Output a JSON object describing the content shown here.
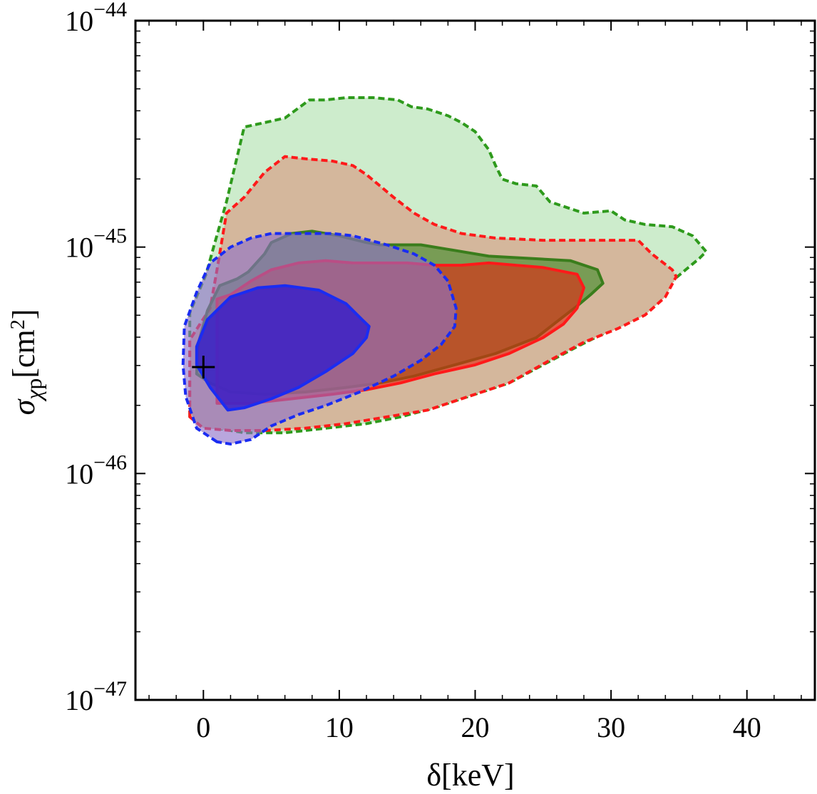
{
  "chart_data": {
    "type": "contour",
    "xlabel": "δ[keV]",
    "ylabel": "σχp[cm2]",
    "xlim": [
      -5,
      45
    ],
    "ylim_exp": [
      -47,
      -44
    ],
    "y_scale": "log",
    "x_ticks": [
      0,
      10,
      20,
      30,
      40
    ],
    "x_tick_labels": [
      "0",
      "10",
      "20",
      "30",
      "40"
    ],
    "y_ticks": [
      {
        "base": "10",
        "exp": "−44",
        "value": -44
      },
      {
        "base": "10",
        "exp": "−45",
        "value": -45
      },
      {
        "base": "10",
        "exp": "−46",
        "value": -46
      },
      {
        "base": "10",
        "exp": "−47",
        "value": -47
      }
    ],
    "grid": false,
    "best_fit_marker": {
      "x": 0.0,
      "log10_y": -45.53
    },
    "regions": [
      {
        "id": "green-outer",
        "line_color": "#2e9a1c",
        "fill_color": "#cdeccc",
        "fill_opacity": 1.0,
        "dashed": true,
        "points": [
          [
            -1.0,
            -45.75
          ],
          [
            -1.0,
            -45.29
          ],
          [
            0.2,
            -45.12
          ],
          [
            0.8,
            -44.99
          ],
          [
            1.7,
            -44.8
          ],
          [
            3.0,
            -44.47
          ],
          [
            4.5,
            -44.45
          ],
          [
            6.0,
            -44.43
          ],
          [
            7.8,
            -44.35
          ],
          [
            9.0,
            -44.35
          ],
          [
            10.5,
            -44.34
          ],
          [
            12.5,
            -44.34
          ],
          [
            14.3,
            -44.35
          ],
          [
            15.3,
            -44.38
          ],
          [
            16.5,
            -44.39
          ],
          [
            18.0,
            -44.42
          ],
          [
            19.0,
            -44.45
          ],
          [
            20.0,
            -44.49
          ],
          [
            21.0,
            -44.57
          ],
          [
            21.5,
            -44.64
          ],
          [
            22.0,
            -44.7
          ],
          [
            23.0,
            -44.72
          ],
          [
            24.5,
            -44.73
          ],
          [
            25.5,
            -44.8
          ],
          [
            27.0,
            -44.83
          ],
          [
            28.0,
            -44.85
          ],
          [
            30.0,
            -44.84
          ],
          [
            31.0,
            -44.88
          ],
          [
            32.5,
            -44.9
          ],
          [
            34.5,
            -44.91
          ],
          [
            36.0,
            -44.95
          ],
          [
            37.0,
            -45.02
          ],
          [
            36.5,
            -45.05
          ],
          [
            35.5,
            -45.1
          ],
          [
            34.5,
            -45.15
          ],
          [
            33.0,
            -45.26
          ],
          [
            31.5,
            -45.32
          ],
          [
            29.5,
            -45.38
          ],
          [
            27.5,
            -45.44
          ],
          [
            25.0,
            -45.52
          ],
          [
            22.5,
            -45.6
          ],
          [
            19.5,
            -45.66
          ],
          [
            17.0,
            -45.71
          ],
          [
            14.5,
            -45.75
          ],
          [
            12.0,
            -45.78
          ],
          [
            9.0,
            -45.8
          ],
          [
            6.0,
            -45.82
          ],
          [
            3.0,
            -45.82
          ],
          [
            1.0,
            -45.8
          ]
        ]
      },
      {
        "id": "red-outer",
        "line_color": "#ff1a1a",
        "fill_color": "#d4b79c",
        "fill_opacity": 1.0,
        "dashed": true,
        "points": [
          [
            -1.0,
            -45.75
          ],
          [
            -1.0,
            -45.41
          ],
          [
            0.5,
            -45.27
          ],
          [
            1.0,
            -45.1
          ],
          [
            1.7,
            -44.85
          ],
          [
            3.0,
            -44.78
          ],
          [
            4.5,
            -44.67
          ],
          [
            6.0,
            -44.6
          ],
          [
            7.5,
            -44.61
          ],
          [
            9.5,
            -44.62
          ],
          [
            11.0,
            -44.64
          ],
          [
            12.0,
            -44.68
          ],
          [
            13.0,
            -44.73
          ],
          [
            14.0,
            -44.78
          ],
          [
            15.5,
            -44.85
          ],
          [
            17.0,
            -44.9
          ],
          [
            19.0,
            -44.94
          ],
          [
            21.5,
            -44.96
          ],
          [
            25.0,
            -44.97
          ],
          [
            29.0,
            -44.97
          ],
          [
            32.0,
            -44.97
          ],
          [
            33.0,
            -45.03
          ],
          [
            34.5,
            -45.1
          ],
          [
            34.8,
            -45.13
          ],
          [
            34.0,
            -45.22
          ],
          [
            32.5,
            -45.3
          ],
          [
            30.5,
            -45.36
          ],
          [
            28.0,
            -45.42
          ],
          [
            25.5,
            -45.5
          ],
          [
            22.5,
            -45.6
          ],
          [
            19.5,
            -45.66
          ],
          [
            16.5,
            -45.72
          ],
          [
            13.5,
            -45.75
          ],
          [
            10.5,
            -45.78
          ],
          [
            7.5,
            -45.8
          ],
          [
            4.5,
            -45.81
          ],
          [
            2.0,
            -45.81
          ],
          [
            0.0,
            -45.8
          ]
        ]
      },
      {
        "id": "green-inner",
        "line_color": "#3a7d1c",
        "fill_color": "#3f8a2a",
        "fill_opacity": 0.62,
        "dashed": false,
        "points": [
          [
            -0.5,
            -45.56
          ],
          [
            -0.4,
            -45.43
          ],
          [
            0.3,
            -45.28
          ],
          [
            1.2,
            -45.17
          ],
          [
            2.5,
            -45.14
          ],
          [
            3.3,
            -45.11
          ],
          [
            4.5,
            -45.03
          ],
          [
            5.0,
            -44.98
          ],
          [
            6.5,
            -44.94
          ],
          [
            8.0,
            -44.93
          ],
          [
            10.0,
            -44.95
          ],
          [
            12.0,
            -44.98
          ],
          [
            13.0,
            -44.99
          ],
          [
            16.0,
            -44.99
          ],
          [
            18.0,
            -45.01
          ],
          [
            21.0,
            -45.04
          ],
          [
            24.0,
            -45.05
          ],
          [
            27.0,
            -45.06
          ],
          [
            29.0,
            -45.1
          ],
          [
            29.4,
            -45.16
          ],
          [
            28.5,
            -45.21
          ],
          [
            27.5,
            -45.26
          ],
          [
            26.0,
            -45.33
          ],
          [
            24.5,
            -45.4
          ],
          [
            21.5,
            -45.47
          ],
          [
            18.5,
            -45.52
          ],
          [
            15.5,
            -45.57
          ],
          [
            13.0,
            -45.6
          ],
          [
            10.5,
            -45.62
          ],
          [
            7.5,
            -45.64
          ],
          [
            4.5,
            -45.65
          ],
          [
            2.0,
            -45.64
          ],
          [
            0.5,
            -45.6
          ]
        ]
      },
      {
        "id": "red-inner",
        "line_color": "#ff1a1a",
        "fill_color": "#e02810",
        "fill_opacity": 0.62,
        "dashed": false,
        "points": [
          [
            1.0,
            -45.69
          ],
          [
            1.0,
            -45.23
          ],
          [
            2.0,
            -45.21
          ],
          [
            3.5,
            -45.15
          ],
          [
            5.0,
            -45.1
          ],
          [
            7.0,
            -45.07
          ],
          [
            9.0,
            -45.06
          ],
          [
            11.0,
            -45.07
          ],
          [
            13.0,
            -45.07
          ],
          [
            15.0,
            -45.07
          ],
          [
            17.0,
            -45.08
          ],
          [
            19.0,
            -45.08
          ],
          [
            21.0,
            -45.07
          ],
          [
            23.0,
            -45.08
          ],
          [
            25.0,
            -45.09
          ],
          [
            27.5,
            -45.12
          ],
          [
            28.0,
            -45.18
          ],
          [
            27.5,
            -45.27
          ],
          [
            26.5,
            -45.34
          ],
          [
            25.0,
            -45.4
          ],
          [
            22.5,
            -45.47
          ],
          [
            20.0,
            -45.52
          ],
          [
            17.0,
            -45.56
          ],
          [
            14.5,
            -45.6
          ],
          [
            12.0,
            -45.63
          ],
          [
            9.5,
            -45.65
          ],
          [
            6.5,
            -45.67
          ],
          [
            3.5,
            -45.69
          ]
        ]
      },
      {
        "id": "blue-outer",
        "line_color": "#1a2cf2",
        "fill_color": "#8e70c8",
        "fill_opacity": 0.62,
        "dashed": true,
        "points": [
          [
            1.0,
            -45.86
          ],
          [
            -0.5,
            -45.8
          ],
          [
            -1.3,
            -45.66
          ],
          [
            -1.5,
            -45.52
          ],
          [
            -1.4,
            -45.35
          ],
          [
            -0.5,
            -45.2
          ],
          [
            0.5,
            -45.07
          ],
          [
            2.0,
            -45.0
          ],
          [
            3.5,
            -44.96
          ],
          [
            5.0,
            -44.94
          ],
          [
            7.5,
            -44.94
          ],
          [
            9.5,
            -44.94
          ],
          [
            11.0,
            -44.95
          ],
          [
            13.5,
            -44.99
          ],
          [
            15.5,
            -45.03
          ],
          [
            17.0,
            -45.08
          ],
          [
            18.0,
            -45.15
          ],
          [
            18.6,
            -45.27
          ],
          [
            18.5,
            -45.35
          ],
          [
            17.5,
            -45.43
          ],
          [
            16.0,
            -45.5
          ],
          [
            14.0,
            -45.57
          ],
          [
            11.5,
            -45.64
          ],
          [
            9.0,
            -45.7
          ],
          [
            7.0,
            -45.74
          ],
          [
            5.0,
            -45.79
          ],
          [
            3.5,
            -45.85
          ],
          [
            2.0,
            -45.87
          ]
        ]
      },
      {
        "id": "blue-inner",
        "line_color": "#1a2cf2",
        "fill_color": "#3a20c8",
        "fill_opacity": 0.85,
        "dashed": false,
        "points": [
          [
            1.8,
            -45.72
          ],
          [
            0.5,
            -45.62
          ],
          [
            -0.5,
            -45.52
          ],
          [
            -0.5,
            -45.44
          ],
          [
            0.3,
            -45.32
          ],
          [
            2.0,
            -45.22
          ],
          [
            4.0,
            -45.18
          ],
          [
            6.0,
            -45.17
          ],
          [
            8.5,
            -45.19
          ],
          [
            10.5,
            -45.25
          ],
          [
            11.5,
            -45.31
          ],
          [
            12.2,
            -45.35
          ],
          [
            12.0,
            -45.4
          ],
          [
            11.0,
            -45.47
          ],
          [
            9.0,
            -45.55
          ],
          [
            7.0,
            -45.62
          ],
          [
            5.0,
            -45.67
          ],
          [
            3.0,
            -45.71
          ]
        ]
      }
    ]
  }
}
